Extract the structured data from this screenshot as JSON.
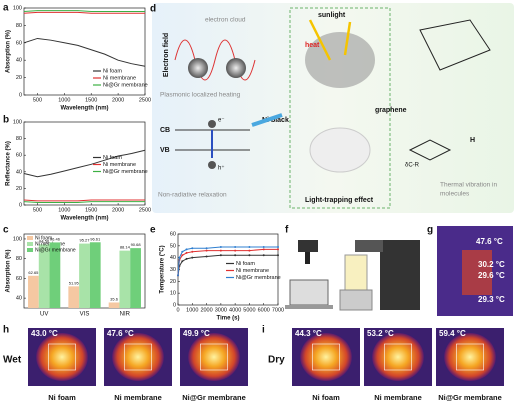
{
  "chart_data": [
    {
      "type": "line",
      "panel": "a",
      "x_label": "Wavelength (nm)",
      "y_label": "Absorption (%)",
      "x": [
        250,
        500,
        750,
        1000,
        1250,
        1500,
        1750,
        2000,
        2250,
        2500
      ],
      "series": [
        {
          "name": "Ni foam",
          "color": "#333333",
          "values": [
            60,
            65,
            63,
            60,
            57,
            52,
            47,
            40,
            36,
            33
          ]
        },
        {
          "name": "Ni membrane",
          "color": "#e03030",
          "values": [
            94,
            95,
            95,
            95,
            95,
            94,
            94,
            94,
            94,
            94
          ]
        },
        {
          "name": "Ni@Gr membrane",
          "color": "#3cb043",
          "values": [
            96,
            97,
            97,
            97,
            97,
            96,
            96,
            96,
            96,
            96
          ]
        }
      ],
      "xlim": [
        250,
        2500
      ],
      "xticks": [
        500,
        1000,
        1500,
        2000,
        2500
      ],
      "ylim": [
        0,
        100
      ],
      "yticks": [
        0,
        20,
        40,
        60,
        80,
        100
      ],
      "legend": "lower right"
    },
    {
      "type": "line",
      "panel": "b",
      "x_label": "Wavelength (nm)",
      "y_label": "Reflectance (%)",
      "x": [
        250,
        500,
        750,
        1000,
        1250,
        1500,
        1750,
        2000,
        2250,
        2500
      ],
      "series": [
        {
          "name": "Ni foam",
          "color": "#333333",
          "values": [
            38,
            34,
            37,
            41,
            45,
            49,
            54,
            59,
            62,
            66
          ]
        },
        {
          "name": "Ni membrane",
          "color": "#e03030",
          "values": [
            6,
            5,
            5,
            5,
            5,
            6,
            6,
            6,
            6,
            6
          ]
        },
        {
          "name": "Ni@Gr membrane",
          "color": "#3cb043",
          "values": [
            4,
            3,
            3,
            3,
            3,
            4,
            4,
            4,
            4,
            4
          ]
        }
      ],
      "xlim": [
        250,
        2500
      ],
      "xticks": [
        500,
        1000,
        1500,
        2000,
        2500
      ],
      "ylim": [
        0,
        100
      ],
      "yticks": [
        0,
        20,
        40,
        60,
        80,
        100
      ],
      "legend": "center right"
    },
    {
      "type": "bar",
      "panel": "c",
      "y_label": "Absorption (%)",
      "categories": [
        "UV",
        "VIS",
        "NIR"
      ],
      "series": [
        {
          "name": "Ni foam",
          "color": "#f5c8a2",
          "values": [
            62.65,
            51.95,
            35.6
          ]
        },
        {
          "name": "Ni membrane",
          "color": "#a8e3a8",
          "values": [
            94.56,
            95.27,
            88.14
          ]
        },
        {
          "name": "Ni@Gr membrane",
          "color": "#6fcf7a",
          "values": [
            96.46,
            96.61,
            90.68
          ]
        }
      ],
      "ylim": [
        30,
        105
      ],
      "yticks": [
        40,
        60,
        80,
        100
      ],
      "legend": "upper left"
    },
    {
      "type": "line",
      "panel": "e",
      "x_label": "Time (s)",
      "y_label": "Temperature (°C)",
      "x": [
        0,
        100,
        300,
        600,
        1000,
        2000,
        3000,
        4000,
        5000,
        6000,
        7000
      ],
      "series": [
        {
          "name": "Ni foam",
          "color": "#333333",
          "values": [
            25,
            33,
            37,
            39,
            40,
            41,
            42,
            42,
            42,
            42,
            42
          ]
        },
        {
          "name": "Ni membrane",
          "color": "#e03030",
          "values": [
            25,
            38,
            42,
            44,
            45,
            46,
            46,
            46,
            46,
            47,
            47
          ]
        },
        {
          "name": "Ni@Gr membrane",
          "color": "#2f7fd0",
          "values": [
            25,
            40,
            45,
            47,
            48,
            48,
            49,
            49,
            49,
            49,
            49
          ]
        }
      ],
      "xlim": [
        0,
        7000
      ],
      "xticks": [
        0,
        1000,
        2000,
        3000,
        4000,
        5000,
        6000,
        7000
      ],
      "ylim": [
        0,
        60
      ],
      "yticks": [
        0,
        10,
        20,
        30,
        40,
        50,
        60
      ],
      "legend": "center right"
    }
  ],
  "diagram_d": {
    "label": "d",
    "electron_field": "Electron field",
    "electron_cloud": "electron cloud",
    "plasmonic": "Plasmonic localized heating",
    "ni_black": "Ni black",
    "sunlight": "sunlight",
    "heat": "heat",
    "graphene": "graphene",
    "cb": "CB",
    "vb": "VB",
    "electron": "e⁻",
    "hole": "h⁺",
    "non_radiative": "Non-radiative relaxation",
    "light_trapping": "Light-trapping effect",
    "thermal_vibration": [
      "Thermal vibration in",
      "molecules"
    ],
    "delta": "δC-R",
    "hydrogen": "H"
  },
  "panel_f": {
    "label": "f"
  },
  "panel_g": {
    "label": "g",
    "temperatures": [
      "47.6 °C",
      "30.2 °C",
      "29.6 °C",
      "29.3 °C"
    ]
  },
  "panel_h": {
    "label": "h",
    "condition": "Wet",
    "images": [
      {
        "temperature": "43.0 °C",
        "name": "Ni foam"
      },
      {
        "temperature": "47.6 °C",
        "name": "Ni membrane"
      },
      {
        "temperature": "49.9 °C",
        "name": "Ni@Gr membrane"
      }
    ]
  },
  "panel_i": {
    "label": "i",
    "condition": "Dry",
    "images": [
      {
        "temperature": "44.3 °C",
        "name": "Ni foam"
      },
      {
        "temperature": "53.2 °C",
        "name": "Ni membrane"
      },
      {
        "temperature": "59.4 °C",
        "name": "Ni@Gr membrane"
      }
    ]
  }
}
